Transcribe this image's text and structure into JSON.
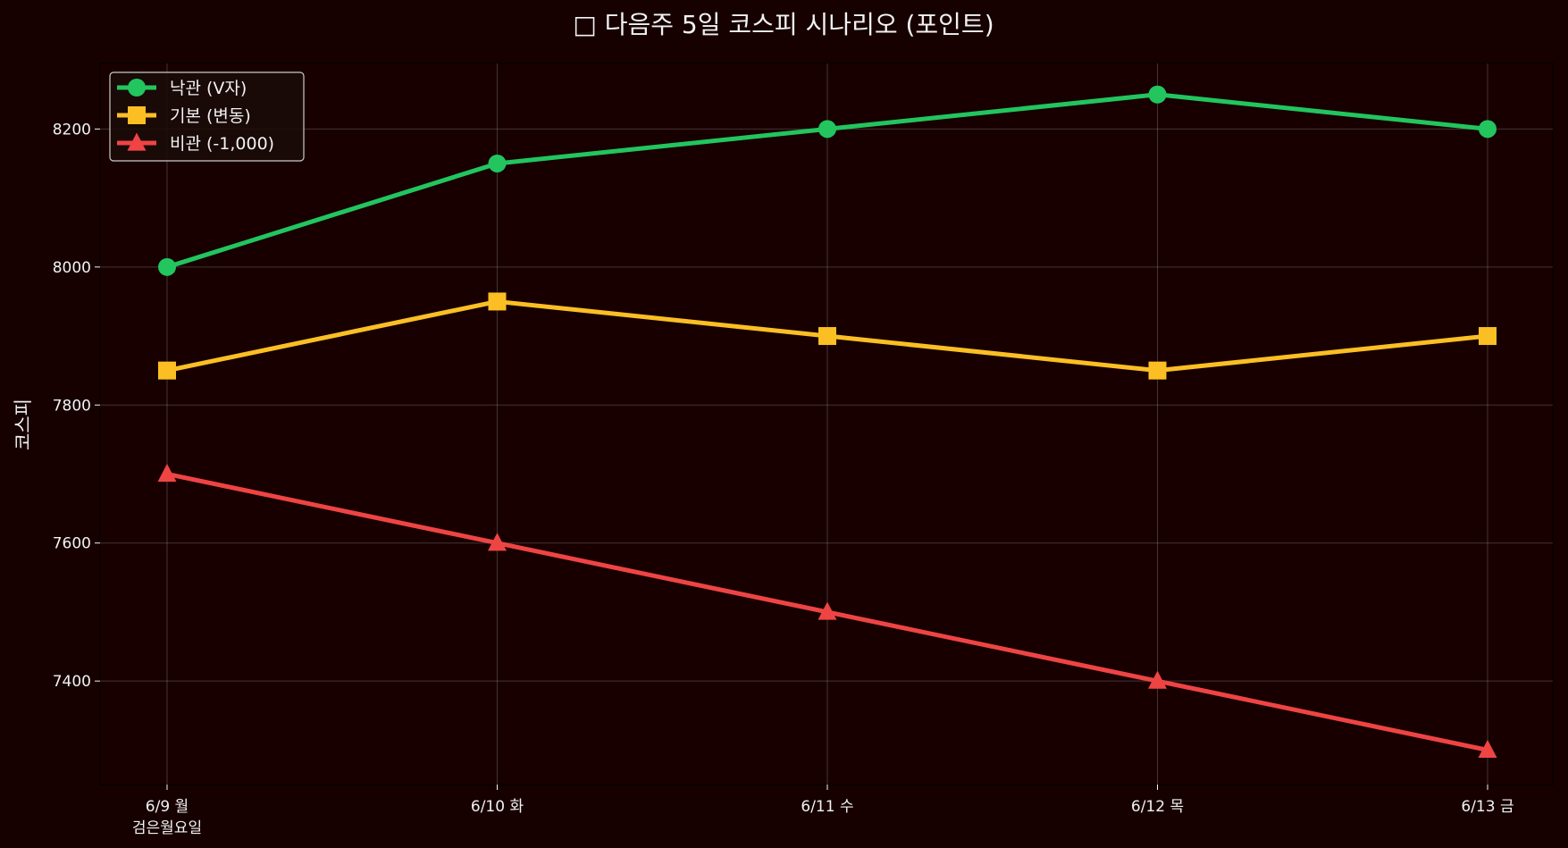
{
  "chart_data": {
    "type": "line",
    "title": "□ 다음주 5일 코스피 시나리오 (포인트)",
    "xlabel": "",
    "ylabel": "코스피",
    "categories": [
      "6/9 월",
      "6/10 화",
      "6/11 수",
      "6/12 목",
      "6/13 금"
    ],
    "category_sublabels": [
      "검은월요일",
      "",
      "",
      "",
      ""
    ],
    "yticks": [
      7400,
      7600,
      7800,
      8000,
      8200
    ],
    "ylim": [
      7250,
      8295
    ],
    "grid": true,
    "legend_position": "top-left",
    "series": [
      {
        "name": "낙관 (V자)",
        "values": [
          8000,
          8150,
          8200,
          8250,
          8200
        ],
        "color": "#22c55e",
        "marker": "circle"
      },
      {
        "name": "기본 (변동)",
        "values": [
          7850,
          7950,
          7900,
          7850,
          7900
        ],
        "color": "#fbbf24",
        "marker": "square"
      },
      {
        "name": "비관 (-1,000)",
        "values": [
          7700,
          7600,
          7500,
          7400,
          7300
        ],
        "color": "#ef4444",
        "marker": "triangle"
      }
    ],
    "background_color": "#160000"
  }
}
